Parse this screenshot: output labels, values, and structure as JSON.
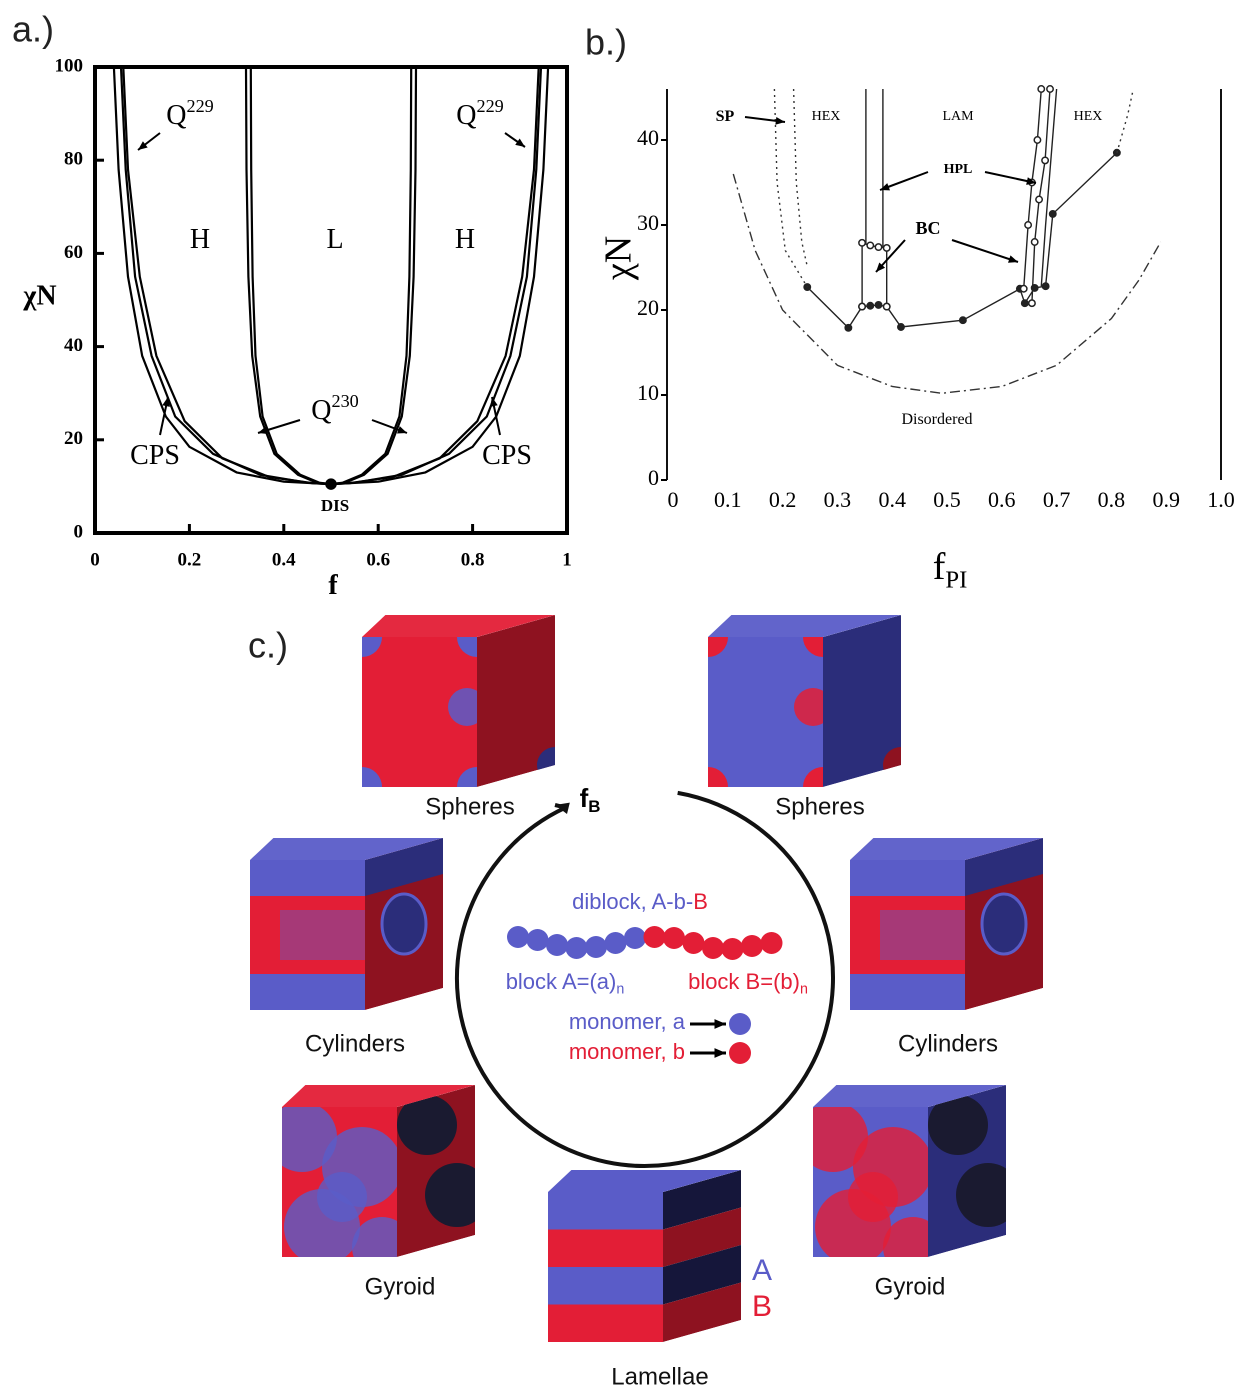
{
  "chart_data": [
    {
      "type": "line",
      "panel_label": "a.)",
      "xlabel": "f",
      "ylabel": "χN",
      "xlim": [
        0,
        1
      ],
      "ylim": [
        0,
        100
      ],
      "xticks": [
        0,
        0.2,
        0.4,
        0.6,
        0.8,
        1
      ],
      "yticks": [
        0,
        20,
        40,
        60,
        80,
        100
      ],
      "frame": true,
      "annotations": [
        {
          "text": "Q",
          "superscript": "229"
        },
        {
          "text": "H"
        },
        {
          "text": "L"
        },
        {
          "text": "H"
        },
        {
          "text": "Q",
          "superscript": "229"
        },
        {
          "text": "CPS"
        },
        {
          "text": "CPS"
        },
        {
          "text": "Q",
          "superscript": "230"
        },
        {
          "text": "DIS"
        }
      ],
      "series": [
        {
          "color": "#000000",
          "style": "solid",
          "x": [
            0.04,
            0.05,
            0.07,
            0.1,
            0.15,
            0.2,
            0.3,
            0.4,
            0.5,
            0.6,
            0.7,
            0.8,
            0.85,
            0.9,
            0.93,
            0.95,
            0.96
          ],
          "values": [
            100,
            78,
            55,
            38,
            25,
            18.5,
            13,
            11,
            10.5,
            11,
            13,
            18.5,
            25,
            38,
            55,
            78,
            100
          ]
        },
        {
          "color": "#000000",
          "style": "solid",
          "x": [
            0.055,
            0.065,
            0.085,
            0.12,
            0.17,
            0.25,
            0.35,
            0.45,
            0.5,
            0.55,
            0.65,
            0.75,
            0.83,
            0.88,
            0.915,
            0.935,
            0.945
          ],
          "values": [
            100,
            78,
            55,
            38,
            25,
            17,
            12.5,
            10.8,
            10.5,
            10.8,
            12.5,
            17,
            25,
            38,
            55,
            78,
            100
          ]
        },
        {
          "color": "#000000",
          "style": "solid",
          "x": [
            0.06,
            0.07,
            0.095,
            0.13,
            0.19,
            0.27,
            0.37,
            0.46,
            0.5,
            0.54,
            0.63,
            0.73,
            0.81,
            0.87,
            0.905,
            0.93,
            0.94
          ],
          "values": [
            100,
            78,
            55,
            38,
            24,
            16,
            12,
            10.7,
            10.5,
            10.7,
            12,
            16,
            24,
            38,
            55,
            78,
            100
          ]
        },
        {
          "color": "#000000",
          "style": "solid",
          "x": [
            0.32,
            0.321,
            0.325,
            0.333,
            0.35,
            0.38,
            0.43,
            0.47,
            0.5,
            0.53,
            0.57,
            0.62,
            0.65,
            0.667,
            0.675,
            0.679,
            0.68
          ],
          "values": [
            100,
            78,
            55,
            38,
            25,
            17,
            12.5,
            10.8,
            10.5,
            10.8,
            12.5,
            17,
            25,
            38,
            55,
            78,
            100
          ]
        },
        {
          "color": "#000000",
          "style": "solid",
          "x": [
            0.33,
            0.331,
            0.334,
            0.34,
            0.355,
            0.385,
            0.435,
            0.475,
            0.5,
            0.525,
            0.565,
            0.615,
            0.645,
            0.66,
            0.666,
            0.669,
            0.67
          ],
          "values": [
            100,
            78,
            55,
            38,
            25,
            17,
            12.5,
            10.8,
            10.5,
            10.8,
            12.5,
            17,
            25,
            38,
            55,
            78,
            100
          ]
        },
        {
          "color": "#000000",
          "style": "none",
          "marker": "filled",
          "x": [
            0.5
          ],
          "values": [
            10.5
          ]
        }
      ]
    },
    {
      "type": "line",
      "panel_label": "b.)",
      "xlabel": "f",
      "xlabel_subscript": "PI",
      "ylabel": "χN",
      "xlim": [
        0,
        1
      ],
      "ylim": [
        0,
        46
      ],
      "xticks": [
        0,
        0.1,
        0.2,
        0.3,
        0.4,
        0.5,
        0.6,
        0.7,
        0.8,
        0.9,
        {
          "value": 1,
          "label": "1.0"
        }
      ],
      "yticks": [
        0,
        10,
        20,
        30,
        40
      ],
      "frame": false,
      "annotations": [
        {
          "text": "SP"
        },
        {
          "text": "HEX"
        },
        {
          "text": "LAM"
        },
        {
          "text": "HEX"
        },
        {
          "text": "HPL"
        },
        {
          "text": "BC"
        },
        {
          "text": "Disordered"
        }
      ],
      "series": [
        {
          "color": "#333333",
          "style": "dashdot",
          "x": [
            0.11,
            0.15,
            0.2,
            0.3,
            0.4,
            0.49,
            0.6,
            0.7,
            0.8,
            0.85,
            0.89
          ],
          "values": [
            36,
            27,
            20,
            13.5,
            11,
            10.2,
            11,
            13.5,
            19,
            23.5,
            28
          ]
        },
        {
          "color": "#222222",
          "style": "solid",
          "marker": "filled",
          "x": [
            0.245,
            0.32,
            0.345,
            0.36,
            0.375,
            0.39,
            0.416,
            0.529,
            0.633,
            0.642,
            0.66,
            0.68,
            0.693,
            0.81
          ],
          "values": [
            22.7,
            17.9,
            20.4,
            20.5,
            20.6,
            20.4,
            18,
            18.8,
            22.5,
            20.8,
            22.6,
            22.8,
            31.3,
            38.5
          ]
        },
        {
          "color": "#333333",
          "style": "dotted",
          "x": [
            0.185,
            0.19,
            0.205,
            0.245
          ],
          "values": [
            46,
            35,
            27,
            22.7
          ]
        },
        {
          "color": "#333333",
          "style": "dotted",
          "x": [
            0.22,
            0.225,
            0.235,
            0.245
          ],
          "values": [
            46,
            35,
            28,
            25.1
          ]
        },
        {
          "color": "#222222",
          "style": "solid",
          "marker": "open",
          "x": [
            0.345,
            0.345,
            0.36,
            0.375,
            0.39,
            0.39
          ],
          "values": [
            20.4,
            27.9,
            27.6,
            27.4,
            27.3,
            20.4
          ]
        },
        {
          "color": "#222222",
          "style": "solid",
          "x": [
            0.352,
            0.352
          ],
          "values": [
            46,
            27.8
          ]
        },
        {
          "color": "#222222",
          "style": "solid",
          "x": [
            0.383,
            0.383
          ],
          "values": [
            46,
            27.3
          ]
        },
        {
          "color": "#222222",
          "style": "solid",
          "marker": "open",
          "x": [
            0.64,
            0.648,
            0.655,
            0.665,
            0.672
          ],
          "values": [
            22.5,
            30,
            35,
            40,
            46
          ]
        },
        {
          "color": "#222222",
          "style": "solid",
          "marker": "open",
          "x": [
            0.655,
            0.66,
            0.668,
            0.679,
            0.688
          ],
          "values": [
            20.8,
            28,
            33,
            37.6,
            46
          ]
        },
        {
          "color": "#222222",
          "style": "solid",
          "x": [
            0.672,
            0.68,
            0.69,
            0.7
          ],
          "values": [
            22.8,
            30,
            38,
            46
          ]
        },
        {
          "color": "#333333",
          "style": "dotted",
          "x": [
            0.81,
            0.83,
            0.84
          ],
          "values": [
            38.5,
            43,
            46
          ]
        }
      ]
    }
  ],
  "diagram": {
    "panel_label": "c.)",
    "arrow_label": "f",
    "arrow_label_subscript": "B",
    "structures": [
      "Spheres",
      "Spheres",
      "Cylinders",
      "Cylinders",
      "Gyroid",
      "Gyroid",
      "Lamellae"
    ],
    "chain": {
      "title_a": "diblock, A-b-",
      "title_b": "B",
      "block_a": "block A=(a)",
      "block_a_sub": "n",
      "block_b": "block B=(b)",
      "block_b_sub": "n",
      "monomer_a": "monomer, a",
      "monomer_b": "monomer, b"
    },
    "layer_labels": [
      "A",
      "B"
    ]
  }
}
